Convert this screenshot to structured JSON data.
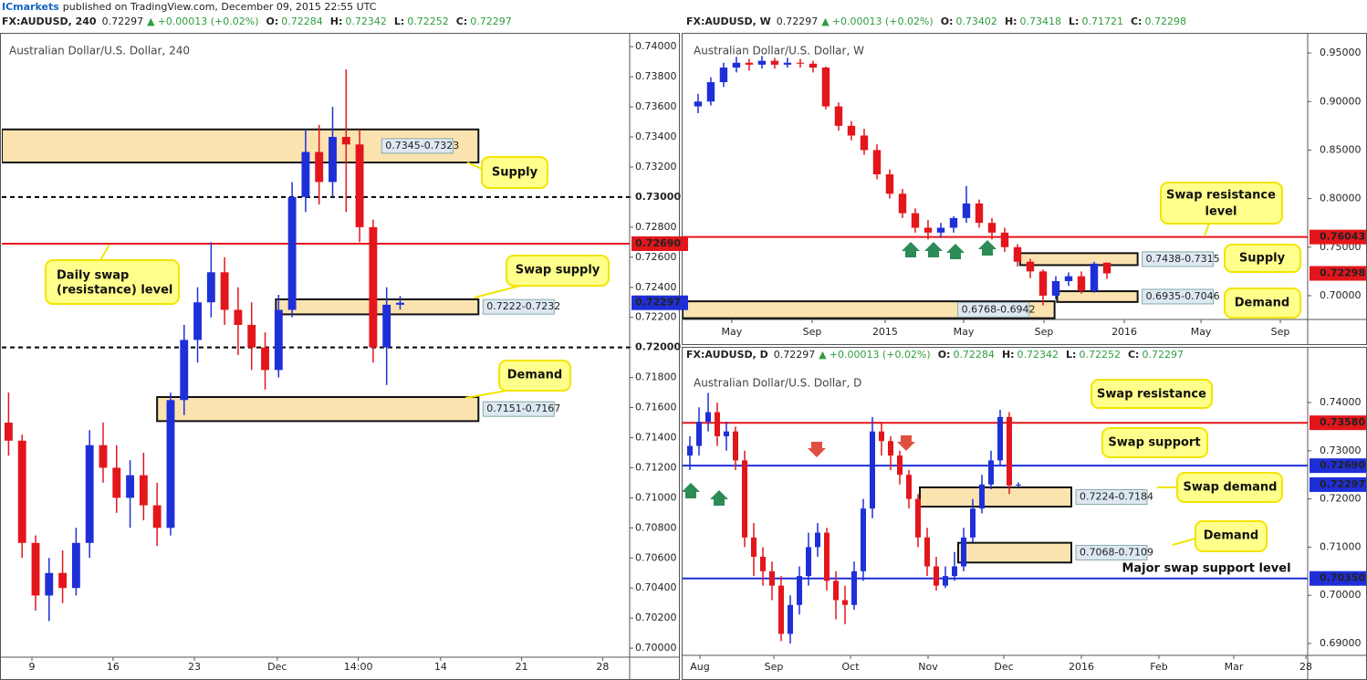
{
  "publisher": "ICmarkets",
  "published": "published on TradingView.com, December 09, 2015 22:55 UTC",
  "chart_data": [
    {
      "type": "candlestick",
      "symbol": "FX:AUDUSD, 240",
      "price": "0.72297",
      "arrow": "▲",
      "change": "+0.00013 (+0.02%)",
      "ohlc_labels": [
        "O:",
        "H:",
        "L:",
        "C:"
      ],
      "ohlc": [
        "0.72284",
        "0.72342",
        "0.72252",
        "0.72297"
      ],
      "title": "Australian Dollar/U.S. Dollar, 240",
      "up_color": "#1f2fd8",
      "down_color": "#e3161c",
      "open": [
        0.715,
        0.7138,
        0.707,
        0.7035,
        0.705,
        0.704,
        0.707,
        0.7135,
        0.712,
        0.71,
        0.7115,
        0.7095,
        0.708,
        0.7165,
        0.7205,
        0.723,
        0.725,
        0.7225,
        0.7215,
        0.72,
        0.7185,
        0.7225,
        0.73,
        0.733,
        0.731,
        0.734,
        0.7335,
        0.728,
        0.72,
        0.72284
      ],
      "high": [
        0.717,
        0.7142,
        0.7075,
        0.706,
        0.7065,
        0.708,
        0.7145,
        0.715,
        0.7135,
        0.7125,
        0.713,
        0.711,
        0.717,
        0.7215,
        0.724,
        0.727,
        0.726,
        0.724,
        0.723,
        0.721,
        0.7235,
        0.731,
        0.7345,
        0.7348,
        0.736,
        0.7385,
        0.7345,
        0.7285,
        0.724,
        0.72342
      ],
      "low": [
        0.7128,
        0.706,
        0.7025,
        0.7018,
        0.703,
        0.7035,
        0.706,
        0.711,
        0.709,
        0.708,
        0.7085,
        0.7068,
        0.7075,
        0.7155,
        0.719,
        0.722,
        0.7215,
        0.7195,
        0.7185,
        0.7172,
        0.718,
        0.722,
        0.729,
        0.7295,
        0.73,
        0.729,
        0.727,
        0.719,
        0.7175,
        0.72252
      ],
      "close": [
        0.7138,
        0.707,
        0.7035,
        0.705,
        0.704,
        0.707,
        0.7135,
        0.712,
        0.71,
        0.7115,
        0.7095,
        0.708,
        0.7165,
        0.7205,
        0.723,
        0.725,
        0.7225,
        0.7215,
        0.72,
        0.7185,
        0.7225,
        0.73,
        0.733,
        0.731,
        0.734,
        0.7335,
        0.728,
        0.72,
        0.72284,
        0.72297
      ],
      "xlim": [
        -0.5,
        46
      ],
      "ylim": [
        0.6994,
        0.7408
      ],
      "xticks": [
        {
          "value": 1.73,
          "label": "9"
        },
        {
          "value": 7.74,
          "label": "16"
        },
        {
          "value": 13.76,
          "label": "23"
        },
        {
          "value": 19.9,
          "label": "Dec"
        },
        {
          "value": 25.9,
          "label": "14:00"
        },
        {
          "value": 32.0,
          "label": "14"
        },
        {
          "value": 38.0,
          "label": "21"
        },
        {
          "value": 44.0,
          "label": "28"
        }
      ],
      "yticks": [
        {
          "value": 0.7,
          "label": "0.70000"
        },
        {
          "value": 0.702,
          "label": "0.70200"
        },
        {
          "value": 0.704,
          "label": "0.70400"
        },
        {
          "value": 0.706,
          "label": "0.70600"
        },
        {
          "value": 0.708,
          "label": "0.70800"
        },
        {
          "value": 0.71,
          "label": "0.71000"
        },
        {
          "value": 0.712,
          "label": "0.71200"
        },
        {
          "value": 0.714,
          "label": "0.71400"
        },
        {
          "value": 0.716,
          "label": "0.71600"
        },
        {
          "value": 0.718,
          "label": "0.71800"
        },
        {
          "value": 0.72,
          "label": "0.72000"
        },
        {
          "value": 0.722,
          "label": "0.72200"
        },
        {
          "value": 0.724,
          "label": "0.72400"
        },
        {
          "value": 0.726,
          "label": "0.72600"
        },
        {
          "value": 0.728,
          "label": "0.72800"
        },
        {
          "value": 0.73,
          "label": "0.73000"
        },
        {
          "value": 0.732,
          "label": "0.73200"
        },
        {
          "value": 0.734,
          "label": "0.73400"
        },
        {
          "value": 0.736,
          "label": "0.73600"
        },
        {
          "value": 0.738,
          "label": "0.73800"
        },
        {
          "value": 0.74,
          "label": "0.74000"
        }
      ],
      "zones": [
        {
          "low": 0.7323,
          "high": 0.7345,
          "x0": -0.5,
          "x1": 34.8,
          "label": "0.7345-0.7323"
        },
        {
          "low": 0.7222,
          "high": 0.7232,
          "x0": 19.8,
          "x1": 34.8,
          "label": "0.7222-0.7232"
        },
        {
          "low": 0.7151,
          "high": 0.7167,
          "x0": 11.0,
          "x1": 34.8,
          "label": "0.7151-0.7167"
        }
      ],
      "levels": [
        {
          "value": 0.73,
          "label": "0.73000",
          "color": "#000000",
          "style": "dashed"
        },
        {
          "value": 0.7269,
          "label": "0.72690",
          "color": "#e3161c",
          "style": "solid"
        },
        {
          "value": 0.72,
          "label": "0.72000",
          "color": "#000000",
          "style": "dashed"
        }
      ],
      "last_price": {
        "value": 0.72297,
        "label": "0.72297",
        "color": "#1f2fd8"
      },
      "callouts": [
        "Supply",
        "Swap supply",
        "Daily swap",
        "(resistance) level",
        "Demand"
      ]
    },
    {
      "type": "candlestick",
      "symbol": "FX:AUDUSD, W",
      "price": "0.72297",
      "arrow": "▲",
      "change": "+0.00013 (+0.02%)",
      "ohlc_labels": [
        "O:",
        "H:",
        "L:",
        "C:"
      ],
      "ohlc": [
        "0.73402",
        "0.73418",
        "0.71721",
        "0.72298"
      ],
      "title": "Australian Dollar/U.S. Dollar, W",
      "up_color": "#1f2fd8",
      "down_color": "#e3161c",
      "open": [
        0.895,
        0.9,
        0.92,
        0.935,
        0.94,
        0.938,
        0.942,
        0.938,
        0.94,
        0.939,
        0.935,
        0.895,
        0.875,
        0.865,
        0.85,
        0.825,
        0.805,
        0.785,
        0.77,
        0.765,
        0.77,
        0.78,
        0.795,
        0.775,
        0.765,
        0.75,
        0.735,
        0.725,
        0.7,
        0.715,
        0.72,
        0.705,
        0.73402
      ],
      "high": [
        0.908,
        0.925,
        0.94,
        0.946,
        0.944,
        0.947,
        0.945,
        0.945,
        0.944,
        0.942,
        0.936,
        0.899,
        0.88,
        0.872,
        0.856,
        0.83,
        0.81,
        0.79,
        0.778,
        0.775,
        0.782,
        0.813,
        0.799,
        0.78,
        0.77,
        0.753,
        0.738,
        0.727,
        0.72,
        0.724,
        0.725,
        0.735,
        0.73418
      ],
      "low": [
        0.888,
        0.896,
        0.915,
        0.93,
        0.932,
        0.934,
        0.934,
        0.935,
        0.935,
        0.93,
        0.892,
        0.87,
        0.86,
        0.845,
        0.82,
        0.8,
        0.78,
        0.765,
        0.758,
        0.76,
        0.765,
        0.775,
        0.77,
        0.758,
        0.745,
        0.73,
        0.718,
        0.69,
        0.696,
        0.71,
        0.702,
        0.703,
        0.71721
      ],
      "close": [
        0.9,
        0.92,
        0.935,
        0.94,
        0.938,
        0.942,
        0.938,
        0.94,
        0.939,
        0.935,
        0.895,
        0.875,
        0.865,
        0.85,
        0.825,
        0.805,
        0.785,
        0.77,
        0.765,
        0.77,
        0.78,
        0.795,
        0.775,
        0.765,
        0.75,
        0.735,
        0.725,
        0.7,
        0.715,
        0.72,
        0.705,
        0.733,
        0.72298
      ],
      "xlim": [
        -1.21,
        47.71
      ],
      "ylim": [
        0.6755,
        0.9689
      ],
      "xticks": [
        {
          "value": 2.64,
          "label": "May"
        },
        {
          "value": 8.93,
          "label": "Sep"
        },
        {
          "value": 14.64,
          "label": "2015"
        },
        {
          "value": 20.79,
          "label": "May"
        },
        {
          "value": 27.07,
          "label": "Sep"
        },
        {
          "value": 33.36,
          "label": "2016"
        },
        {
          "value": 39.36,
          "label": "May"
        },
        {
          "value": 45.57,
          "label": "Sep"
        }
      ],
      "yticks": [
        {
          "value": 0.7,
          "label": "0.70000"
        },
        {
          "value": 0.75,
          "label": "0.75000"
        },
        {
          "value": 0.8,
          "label": "0.80000"
        },
        {
          "value": 0.85,
          "label": "0.85000"
        },
        {
          "value": 0.9,
          "label": "0.90000"
        },
        {
          "value": 0.95,
          "label": "0.95000"
        }
      ],
      "zones": [
        {
          "low": 0.7315,
          "high": 0.7438,
          "x0": 25.2,
          "x1": 34.4,
          "label": "0.7438-0.7315"
        },
        {
          "low": 0.6935,
          "high": 0.7046,
          "x0": 28.1,
          "x1": 34.4,
          "label": "0.6935-0.7046"
        },
        {
          "low": 0.6768,
          "high": 0.6942,
          "x0": -1.21,
          "x1": 27.9,
          "label": "0.6768-0.6942"
        }
      ],
      "levels": [
        {
          "value": 0.76043,
          "label": "0.76043",
          "color": "#e3161c",
          "style": "solid"
        }
      ],
      "last_price": {
        "value": 0.72298,
        "label": "0.72298",
        "color": "#e3161c"
      },
      "callouts": [
        "Swap resistance",
        "level",
        "Supply",
        "Demand"
      ]
    },
    {
      "type": "candlestick",
      "symbol": "FX:AUDUSD, D",
      "price": "0.72297",
      "arrow": "▲",
      "change": "+0.00013 (+0.02%)",
      "ohlc_labels": [
        "O:",
        "H:",
        "L:",
        "C:"
      ],
      "ohlc": [
        "0.72284",
        "0.72342",
        "0.72252",
        "0.72297"
      ],
      "title": "Australian Dollar/U.S. Dollar, D",
      "up_color": "#1f2fd8",
      "down_color": "#e3161c",
      "open": [
        0.729,
        0.731,
        0.736,
        0.738,
        0.733,
        0.734,
        0.728,
        0.712,
        0.708,
        0.705,
        0.702,
        0.692,
        0.698,
        0.704,
        0.71,
        0.713,
        0.703,
        0.699,
        0.698,
        0.705,
        0.718,
        0.734,
        0.732,
        0.729,
        0.725,
        0.72,
        0.712,
        0.706,
        0.702,
        0.704,
        0.706,
        0.712,
        0.718,
        0.723,
        0.728,
        0.737,
        0.72284
      ],
      "high": [
        0.733,
        0.739,
        0.742,
        0.74,
        0.736,
        0.735,
        0.73,
        0.715,
        0.71,
        0.707,
        0.704,
        0.7,
        0.706,
        0.713,
        0.715,
        0.714,
        0.705,
        0.702,
        0.707,
        0.72,
        0.737,
        0.736,
        0.733,
        0.73,
        0.726,
        0.721,
        0.714,
        0.708,
        0.706,
        0.709,
        0.714,
        0.72,
        0.725,
        0.73,
        0.7385,
        0.738,
        0.72342
      ],
      "low": [
        0.726,
        0.729,
        0.734,
        0.731,
        0.73,
        0.726,
        0.71,
        0.704,
        0.702,
        0.699,
        0.6905,
        0.69,
        0.696,
        0.702,
        0.708,
        0.701,
        0.695,
        0.694,
        0.697,
        0.703,
        0.716,
        0.729,
        0.726,
        0.723,
        0.718,
        0.71,
        0.704,
        0.701,
        0.7015,
        0.703,
        0.705,
        0.711,
        0.717,
        0.722,
        0.727,
        0.721,
        0.72252
      ],
      "close": [
        0.731,
        0.736,
        0.738,
        0.733,
        0.734,
        0.728,
        0.712,
        0.708,
        0.705,
        0.702,
        0.692,
        0.698,
        0.704,
        0.71,
        0.713,
        0.703,
        0.699,
        0.698,
        0.705,
        0.718,
        0.734,
        0.732,
        0.729,
        0.725,
        0.72,
        0.712,
        0.706,
        0.702,
        0.704,
        0.706,
        0.712,
        0.718,
        0.723,
        0.728,
        0.737,
        0.7228,
        0.72297
      ],
      "xlim": [
        -0.8,
        67.7
      ],
      "ylim": [
        0.68754,
        0.74739
      ],
      "xticks": [
        {
          "value": 1.1,
          "label": "Aug"
        },
        {
          "value": 9.2,
          "label": "Sep"
        },
        {
          "value": 17.6,
          "label": "Oct"
        },
        {
          "value": 26.1,
          "label": "Nov"
        },
        {
          "value": 34.4,
          "label": "Dec"
        },
        {
          "value": 42.9,
          "label": "2016"
        },
        {
          "value": 51.4,
          "label": "Feb"
        },
        {
          "value": 59.6,
          "label": "Mar"
        },
        {
          "value": 67.5,
          "label": "28"
        }
      ],
      "yticks": [
        {
          "value": 0.69,
          "label": "0.69000"
        },
        {
          "value": 0.7,
          "label": "0.70000"
        },
        {
          "value": 0.71,
          "label": "0.71000"
        },
        {
          "value": 0.72,
          "label": "0.72000"
        },
        {
          "value": 0.73,
          "label": "0.73000"
        },
        {
          "value": 0.74,
          "label": "0.74000"
        }
      ],
      "zones": [
        {
          "low": 0.7184,
          "high": 0.7224,
          "x0": 25.2,
          "x1": 41.8,
          "label": "0.7224-0.7184"
        },
        {
          "low": 0.7068,
          "high": 0.7109,
          "x0": 29.4,
          "x1": 41.8,
          "label": "0.7068-0.7109"
        }
      ],
      "levels": [
        {
          "value": 0.7358,
          "label": "0.73580",
          "color": "#e3161c",
          "style": "solid"
        },
        {
          "value": 0.7269,
          "label": "0.72690",
          "color": "#1f2fd8",
          "style": "solid"
        },
        {
          "value": 0.7035,
          "label": "0.70350",
          "color": "#1f2fd8",
          "style": "solid"
        }
      ],
      "last_price": {
        "value": 0.72297,
        "label": "0.72297",
        "color": "#1f2fd8"
      },
      "callouts": [
        "Swap resistance",
        "Swap support",
        "Swap demand",
        "Demand",
        "Major swap support level"
      ]
    }
  ]
}
